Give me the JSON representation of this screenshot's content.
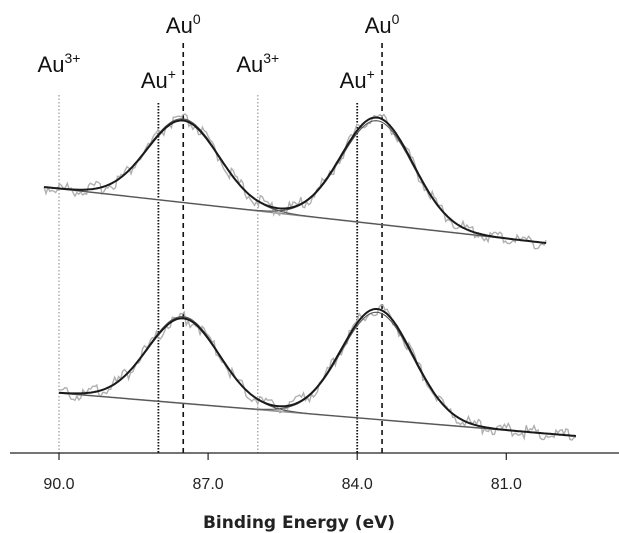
{
  "chart_data": {
    "type": "line",
    "title": "",
    "xlabel": "Binding Energy (eV)",
    "ylabel": "",
    "x_reversed": true,
    "xlim": [
      92.0,
      79.5
    ],
    "x_ticks": [
      {
        "value": 90.0,
        "label": "90.0"
      },
      {
        "value": 87.0,
        "label": "87.0"
      },
      {
        "value": 84.0,
        "label": "84.0"
      },
      {
        "value": 81.0,
        "label": "81.0"
      }
    ],
    "grid": false,
    "legend": "none",
    "reference_lines": [
      {
        "value": 90.0,
        "label": "Au",
        "superscript": "3+",
        "style": "dotted-light"
      },
      {
        "value": 88.0,
        "label": "Au",
        "superscript": "+",
        "style": "dotted-dark"
      },
      {
        "value": 87.5,
        "label": "Au",
        "superscript": "0",
        "style": "dashed"
      },
      {
        "value": 86.0,
        "label": "Au",
        "superscript": "3+",
        "style": "dotted-light"
      },
      {
        "value": 84.0,
        "label": "Au",
        "superscript": "+",
        "style": "dotted-dark"
      },
      {
        "value": 83.5,
        "label": "Au",
        "superscript": "0",
        "style": "dashed"
      }
    ],
    "spectra": [
      {
        "position": "top",
        "peaks": [
          {
            "center": 87.5,
            "height": 1.0,
            "fwhm": 1.7
          },
          {
            "center": 83.6,
            "height": 1.3,
            "fwhm": 1.7
          }
        ],
        "background": {
          "start": [
            90.3,
            0.0
          ],
          "end": [
            80.5,
            0.0
          ]
        },
        "x_range": [
          90.3,
          80.2
        ]
      },
      {
        "position": "bottom",
        "peaks": [
          {
            "center": 87.5,
            "height": 1.0,
            "fwhm": 1.7
          },
          {
            "center": 83.6,
            "height": 1.3,
            "fwhm": 1.7
          }
        ],
        "background": {
          "start": [
            89.8,
            0.0
          ],
          "end": [
            80.5,
            0.0
          ]
        },
        "x_range": [
          90.0,
          79.6
        ]
      }
    ]
  }
}
